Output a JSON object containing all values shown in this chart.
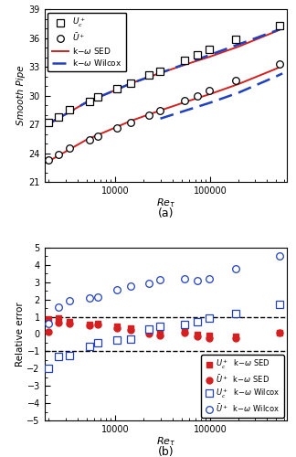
{
  "panel_a": {
    "Re_tau_data": [
      1985,
      2530,
      3334,
      5411,
      6608,
      10481,
      14638,
      22633,
      29905,
      53512,
      74353,
      98190,
      186700,
      537800
    ],
    "Uc_data": [
      27.2,
      27.8,
      28.5,
      29.4,
      29.9,
      30.7,
      31.3,
      32.1,
      32.55,
      33.7,
      34.25,
      34.8,
      35.9,
      37.3
    ],
    "Ubar_data": [
      23.3,
      23.9,
      24.5,
      25.35,
      25.8,
      26.65,
      27.15,
      27.95,
      28.4,
      29.5,
      30.0,
      30.5,
      31.6,
      33.3
    ],
    "Re_line": [
      1800,
      2200,
      3000,
      5000,
      8000,
      15000,
      30000,
      60000,
      100000,
      200000,
      500000,
      580000
    ],
    "Uc_SED": [
      26.85,
      27.25,
      28.05,
      29.3,
      30.15,
      31.3,
      32.35,
      33.35,
      34.05,
      35.1,
      36.7,
      37.0
    ],
    "Ubar_SED": [
      23.05,
      23.4,
      24.15,
      25.4,
      26.25,
      27.4,
      28.45,
      29.45,
      30.15,
      31.2,
      32.8,
      33.1
    ],
    "Uc_Wilcox_line": [
      1800,
      3000,
      5000,
      8000,
      15000,
      30000,
      580000
    ],
    "Uc_Wilcox": [
      26.85,
      28.05,
      29.3,
      30.15,
      31.3,
      32.35,
      37.0
    ],
    "Ubar_Wilcox_line": [
      30000,
      60000,
      100000,
      200000,
      500000,
      580000
    ],
    "Ubar_Wilcox": [
      27.6,
      28.55,
      29.25,
      30.3,
      32.0,
      32.3
    ],
    "ylim": [
      21,
      39
    ],
    "yticks": [
      21,
      24,
      27,
      30,
      33,
      36,
      39
    ],
    "ylabel": "Smooth Pipe",
    "xlabel": "$Re_{\\tau}$",
    "label_a": "(a)",
    "xlim": [
      1800,
      650000
    ]
  },
  "panel_b": {
    "Re_tau": [
      1985,
      2530,
      3334,
      5411,
      6608,
      10481,
      14638,
      22633,
      29905,
      53512,
      74353,
      98190,
      186700,
      537800
    ],
    "Uc_SED_err": [
      0.85,
      0.9,
      0.7,
      0.55,
      0.6,
      0.45,
      0.35,
      0.15,
      0.05,
      0.2,
      -0.05,
      -0.1,
      -0.15,
      0.1
    ],
    "Ubar_SED_err": [
      0.15,
      0.65,
      0.6,
      0.5,
      0.55,
      0.35,
      0.25,
      0.0,
      -0.1,
      0.1,
      -0.15,
      -0.25,
      -0.25,
      0.1
    ],
    "Uc_Wilcox_err": [
      -2.0,
      -1.3,
      -1.25,
      -0.7,
      -0.5,
      -0.35,
      -0.3,
      0.3,
      0.45,
      0.55,
      0.7,
      0.95,
      1.2,
      1.7
    ],
    "Ubar_Wilcox_err": [
      0.6,
      1.55,
      1.95,
      2.1,
      2.15,
      2.55,
      2.8,
      2.95,
      3.15,
      3.2,
      3.1,
      3.2,
      3.8,
      4.5
    ],
    "ylim": [
      -5,
      5
    ],
    "yticks": [
      -5,
      -4,
      -3,
      -2,
      -1,
      0,
      1,
      2,
      3,
      4,
      5
    ],
    "ylabel": "Relative error",
    "xlabel": "$Re_{\\tau}$",
    "label_b": "(b)",
    "hlines": [
      -1,
      1
    ],
    "xlim": [
      1800,
      650000
    ]
  },
  "colors": {
    "red": "#d42020",
    "blue": "#2040c0",
    "black": "#000000"
  }
}
